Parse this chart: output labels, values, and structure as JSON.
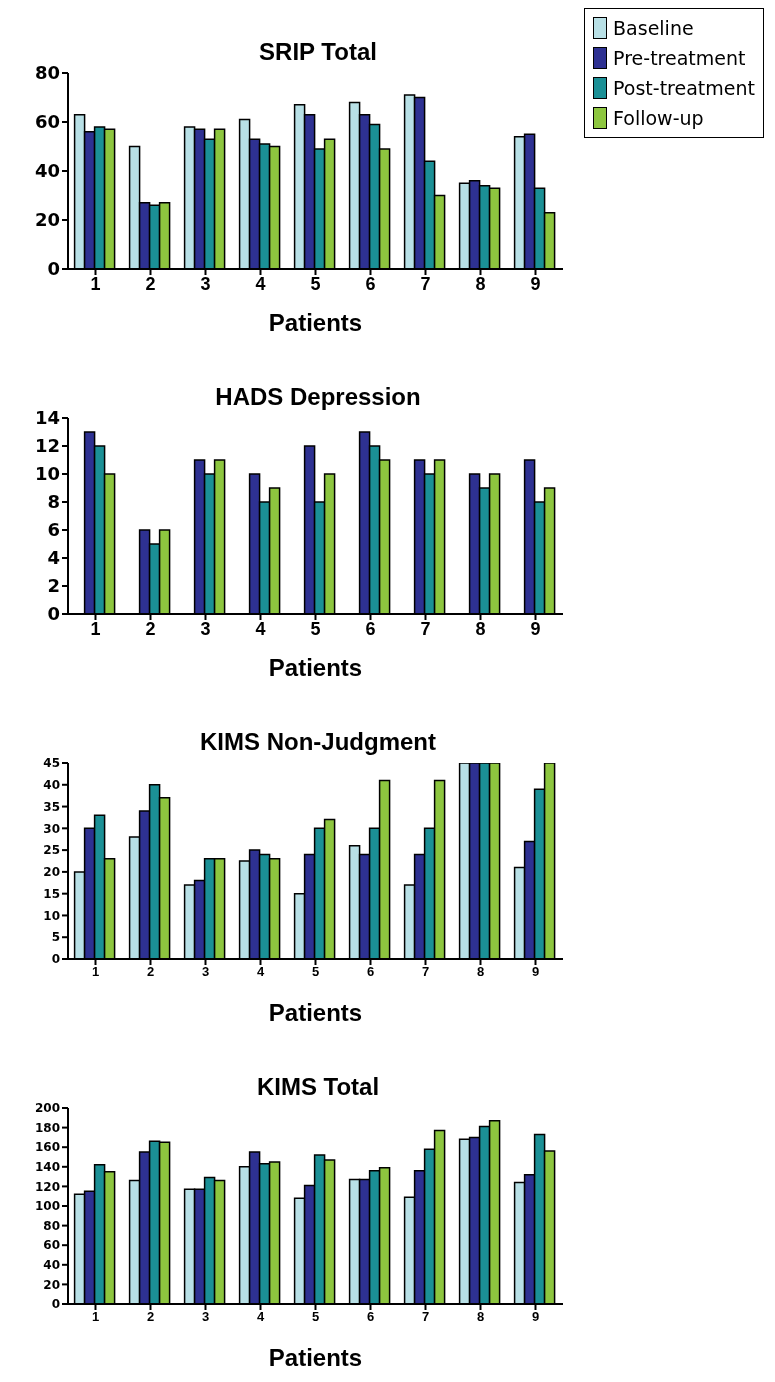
{
  "chart_data": [
    {
      "type": "bar",
      "title": "SRIP Total",
      "xlabel": "Patients",
      "categories": [
        "1",
        "2",
        "3",
        "4",
        "5",
        "6",
        "7",
        "8",
        "9"
      ],
      "ylim": [
        0,
        80
      ],
      "yticks": [
        0,
        20,
        40,
        60,
        80
      ],
      "grid": false,
      "legend": "top right",
      "series": [
        {
          "name": "Baseline",
          "color": "#b8e0e6",
          "values": [
            63,
            50,
            58,
            61,
            67,
            68,
            71,
            35,
            54
          ]
        },
        {
          "name": "Pre-treatment",
          "color": "#2e3192",
          "values": [
            56,
            27,
            57,
            53,
            63,
            63,
            70,
            36,
            55
          ]
        },
        {
          "name": "Post-treatment",
          "color": "#1b9096",
          "values": [
            58,
            26,
            53,
            51,
            49,
            59,
            44,
            34,
            33
          ]
        },
        {
          "name": "Follow-up",
          "color": "#8dc63f",
          "values": [
            57,
            27,
            57,
            50,
            53,
            49,
            30,
            33,
            23
          ]
        }
      ]
    },
    {
      "type": "bar",
      "title": "HADS Depression",
      "xlabel": "Patients",
      "categories": [
        "1",
        "2",
        "3",
        "4",
        "5",
        "6",
        "7",
        "8",
        "9"
      ],
      "ylim": [
        0,
        14
      ],
      "yticks": [
        0,
        2,
        4,
        6,
        8,
        10,
        12,
        14
      ],
      "grid": false,
      "series": [
        {
          "color": "#b8e0e6",
          "values": [
            null,
            null,
            null,
            null,
            null,
            null,
            null,
            null,
            null
          ]
        },
        {
          "color": "#2e3192",
          "values": [
            13,
            6,
            11,
            10,
            12,
            13,
            11,
            10,
            11
          ]
        },
        {
          "color": "#1b9096",
          "values": [
            12,
            5,
            10,
            8,
            8,
            12,
            10,
            9,
            8
          ]
        },
        {
          "color": "#8dc63f",
          "values": [
            10,
            6,
            11,
            9,
            10,
            11,
            11,
            10,
            9
          ]
        }
      ]
    },
    {
      "type": "bar",
      "title": "KIMS Non-Judgment",
      "xlabel": "Patients",
      "categories": [
        "1",
        "2",
        "3",
        "4",
        "5",
        "6",
        "7",
        "8",
        "9"
      ],
      "ylim": [
        0,
        45
      ],
      "yticks": [
        0,
        5,
        10,
        15,
        20,
        25,
        30,
        35,
        40,
        45
      ],
      "grid": false,
      "series": [
        {
          "color": "#b8e0e6",
          "values": [
            20,
            28,
            17,
            22.5,
            15,
            26,
            17,
            45,
            21
          ]
        },
        {
          "color": "#2e3192",
          "values": [
            30,
            34,
            18,
            25,
            24,
            24,
            24,
            45,
            27
          ]
        },
        {
          "color": "#1b9096",
          "values": [
            33,
            40,
            23,
            24,
            30,
            30,
            30,
            45,
            39
          ]
        },
        {
          "color": "#8dc63f",
          "values": [
            23,
            37,
            23,
            23,
            32,
            41,
            41,
            45,
            45
          ]
        }
      ]
    },
    {
      "type": "bar",
      "title": "KIMS Total",
      "xlabel": "Patients",
      "categories": [
        "1",
        "2",
        "3",
        "4",
        "5",
        "6",
        "7",
        "8",
        "9"
      ],
      "ylim": [
        0,
        200
      ],
      "yticks": [
        0,
        20,
        40,
        60,
        80,
        100,
        120,
        140,
        160,
        180,
        200
      ],
      "grid": false,
      "series": [
        {
          "color": "#b8e0e6",
          "values": [
            112,
            126,
            117,
            140,
            108,
            127,
            109,
            168,
            124
          ]
        },
        {
          "color": "#2e3192",
          "values": [
            115,
            155,
            117,
            155,
            121,
            127,
            136,
            170,
            132
          ]
        },
        {
          "color": "#1b9096",
          "values": [
            142,
            166,
            129,
            143,
            152,
            136,
            158,
            181,
            173
          ]
        },
        {
          "color": "#8dc63f",
          "values": [
            135,
            165,
            126,
            145,
            147,
            139,
            177,
            187,
            156
          ]
        }
      ]
    }
  ]
}
